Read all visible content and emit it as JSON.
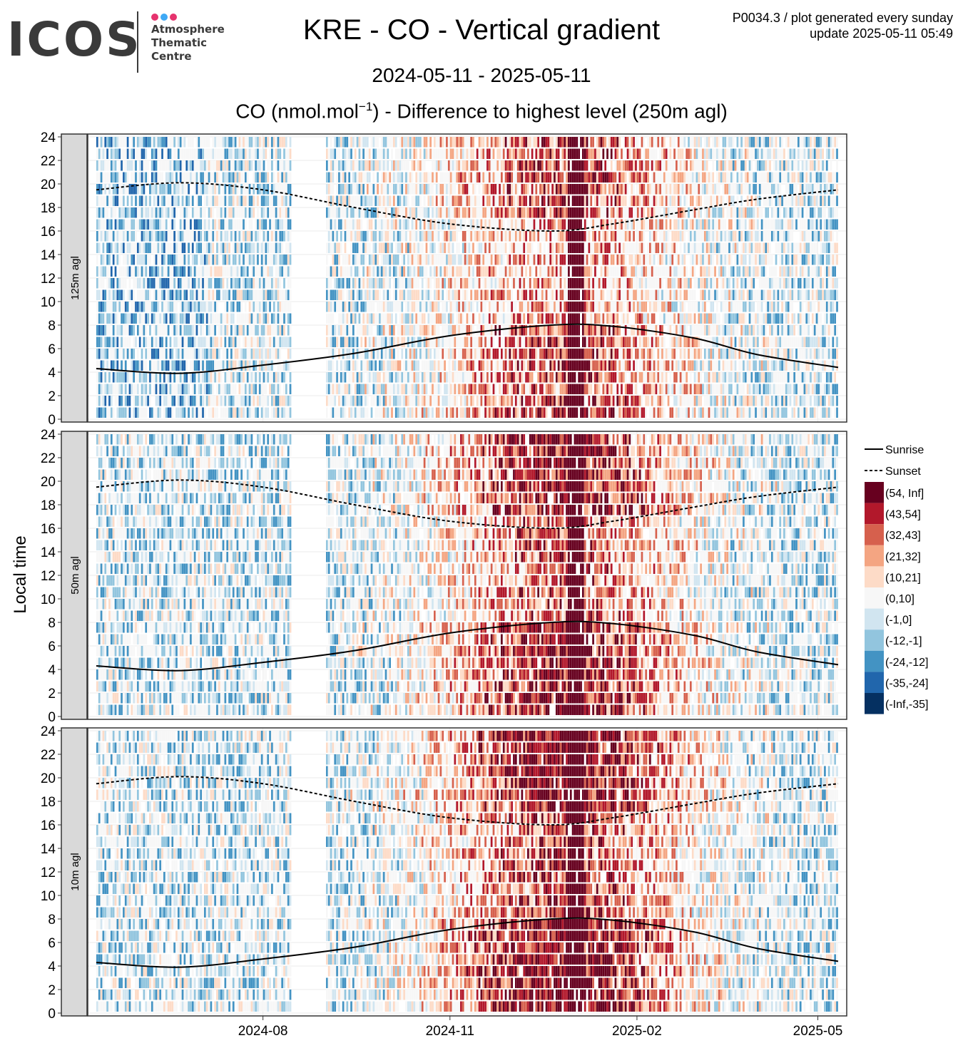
{
  "logo": {
    "word": "ICOS",
    "lines": [
      "Atmosphere",
      "Thematic",
      "Centre"
    ],
    "dot_colors": [
      "#e6336e",
      "#3fa9f5",
      "#e6336e"
    ]
  },
  "header": {
    "title": "KRE - CO - Vertical gradient",
    "date_range": "2024-05-11 - 2025-05-11",
    "subtitle_prefix": "CO (nmol.mol",
    "subtitle_exponent": "−1",
    "subtitle_suffix": ") - Difference to highest level (250m agl)",
    "product_line": "P0034.3 / plot generated every sunday",
    "update_line": "update  2025-05-11 05:49"
  },
  "chart_data": {
    "type": "heatmap",
    "station": "KRE",
    "species": "CO",
    "x_range": [
      "2024-05-11",
      "2025-05-11"
    ],
    "x_ticks": [
      "2024-08",
      "2024-11",
      "2025-02",
      "2025-05"
    ],
    "ylabel": "Local time",
    "y_range": [
      0,
      24
    ],
    "y_ticks": [
      0,
      2,
      4,
      6,
      8,
      10,
      12,
      14,
      16,
      18,
      20,
      22,
      24
    ],
    "panels": [
      {
        "label": "125m agl"
      },
      {
        "label": "50m agl"
      },
      {
        "label": "10m agl"
      }
    ],
    "lines": [
      {
        "name": "Sunrise",
        "style": "solid",
        "points": [
          [
            "2024-05-11",
            4.3
          ],
          [
            "2024-06-21",
            3.9
          ],
          [
            "2024-08-01",
            4.6
          ],
          [
            "2024-09-15",
            5.6
          ],
          [
            "2024-11-01",
            7.1
          ],
          [
            "2024-12-21",
            8.0
          ],
          [
            "2025-01-20",
            7.9
          ],
          [
            "2025-03-01",
            6.9
          ],
          [
            "2025-04-01",
            5.5
          ],
          [
            "2025-05-11",
            4.4
          ]
        ]
      },
      {
        "name": "Sunset",
        "style": "dashed",
        "points": [
          [
            "2024-05-11",
            19.5
          ],
          [
            "2024-06-21",
            20.1
          ],
          [
            "2024-08-01",
            19.5
          ],
          [
            "2024-09-15",
            18.0
          ],
          [
            "2024-11-01",
            16.6
          ],
          [
            "2024-12-21",
            16.0
          ],
          [
            "2025-01-20",
            16.6
          ],
          [
            "2025-03-01",
            17.8
          ],
          [
            "2025-04-01",
            18.7
          ],
          [
            "2025-05-11",
            19.5
          ]
        ]
      }
    ],
    "legend": {
      "position": "right",
      "bins": [
        {
          "label": "(54, Inf]",
          "color": "#67001f"
        },
        {
          "label": "(43,54]",
          "color": "#b2182b"
        },
        {
          "label": "(32,43]",
          "color": "#d6604d"
        },
        {
          "label": "(21,32]",
          "color": "#f4a582"
        },
        {
          "label": "(10,21]",
          "color": "#fddbc7"
        },
        {
          "label": "(0,10]",
          "color": "#f7f7f7"
        },
        {
          "label": "(-1,0]",
          "color": "#d1e5f0"
        },
        {
          "label": "(-12,-1]",
          "color": "#92c5de"
        },
        {
          "label": "(-24,-12]",
          "color": "#4393c3"
        },
        {
          "label": "(-35,-24]",
          "color": "#2166ac"
        },
        {
          "label": "(-Inf,-35]",
          "color": "#053061"
        }
      ]
    },
    "gaps": [
      [
        "2024-08-15",
        "2024-09-01"
      ]
    ]
  }
}
